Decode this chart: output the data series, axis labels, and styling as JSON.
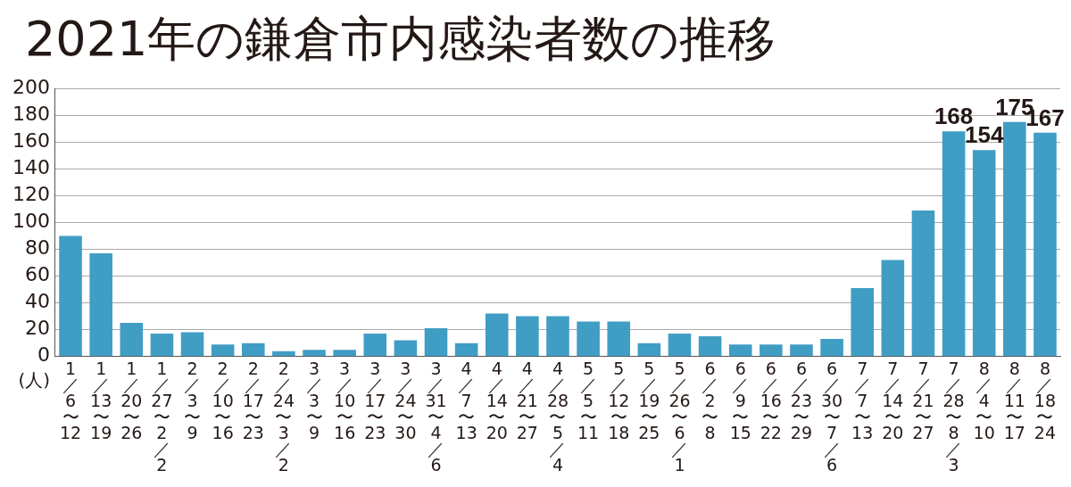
{
  "chart_data": {
    "type": "bar",
    "title": "2021年の鎌倉市内感染者数の推移",
    "ylabel": "(人)",
    "categories": [
      "1／6〜12",
      "1／13〜19",
      "1／20〜26",
      "1／27〜2／2",
      "2／3〜9",
      "2／10〜16",
      "2／17〜23",
      "2／24〜3／2",
      "3／3〜9",
      "3／10〜16",
      "3／17〜23",
      "3／24〜30",
      "3／31〜4／6",
      "4／7〜13",
      "4／14〜20",
      "4／21〜27",
      "4／28〜5／4",
      "5／5〜11",
      "5／12〜18",
      "5／19〜25",
      "5／26〜6／1",
      "6／2〜8",
      "6／9〜15",
      "6／16〜22",
      "6／23〜29",
      "6／30〜7／6",
      "7／7〜13",
      "7／14〜20",
      "7／21〜27",
      "7／28〜8／3",
      "8／4〜10",
      "8／11〜17",
      "8／18〜24"
    ],
    "values": [
      90,
      77,
      25,
      17,
      18,
      9,
      10,
      4,
      5,
      5,
      17,
      12,
      21,
      10,
      32,
      30,
      30,
      26,
      26,
      10,
      17,
      15,
      9,
      9,
      9,
      13,
      51,
      72,
      109,
      168,
      154,
      175,
      167
    ],
    "value_labels": [
      null,
      null,
      null,
      null,
      null,
      null,
      null,
      null,
      null,
      null,
      null,
      null,
      null,
      null,
      null,
      null,
      null,
      null,
      null,
      null,
      null,
      null,
      null,
      null,
      null,
      null,
      null,
      null,
      null,
      "168",
      "154",
      "175",
      "167"
    ],
    "color": "#409dc4",
    "ylim": [
      0,
      200
    ],
    "yticks": [
      0,
      20,
      40,
      60,
      80,
      100,
      120,
      140,
      160,
      180,
      200
    ],
    "grid": "y"
  }
}
